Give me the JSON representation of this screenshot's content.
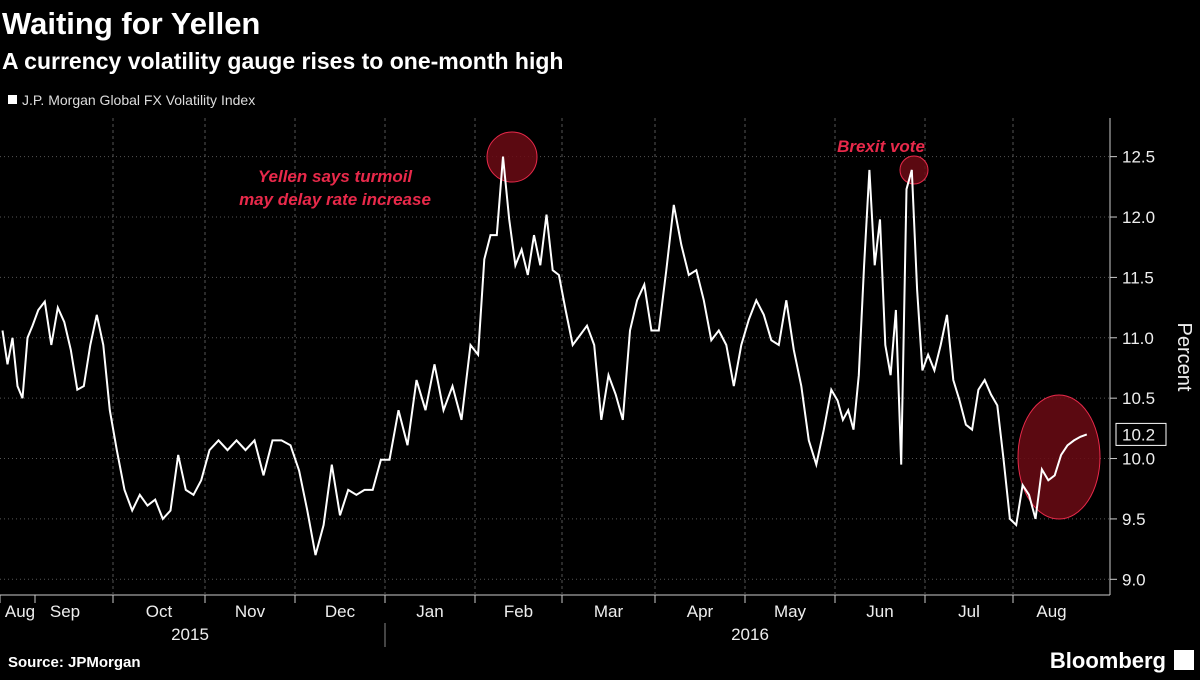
{
  "chart_data": {
    "type": "line",
    "title": "Waiting for Yellen",
    "subtitle": "A currency volatility gauge rises to one-month high",
    "y_label": "Percent",
    "source": "Source: JPMorgan",
    "brand": "Bloomberg",
    "annotations": [
      {
        "lines": [
          "Yellen says turmoil",
          "may delay rate increase"
        ]
      },
      {
        "lines": [
          "Brexit vote"
        ]
      }
    ],
    "ylim": [
      8.87,
      12.82
    ],
    "yticks": [
      {
        "value": 9,
        "label": "9.0"
      },
      9.5,
      {
        "value": 10,
        "label": "10.0"
      },
      10.5,
      {
        "value": 11,
        "label": "11.0"
      },
      11.5,
      {
        "value": 12,
        "label": "12.0"
      },
      12.5
    ],
    "grid": true,
    "xticks": [
      {
        "value": "2015-08",
        "label": "Aug"
      },
      {
        "value": "2015-09",
        "label": "Sep"
      },
      {
        "value": "2015-10",
        "label": "Oct"
      },
      {
        "value": "2015-11",
        "label": "Nov"
      },
      {
        "value": "2015-12",
        "label": "Dec"
      },
      {
        "value": "2016-01",
        "label": "Jan"
      },
      {
        "value": "2016-02",
        "label": "Feb"
      },
      {
        "value": "2016-03",
        "label": "Mar"
      },
      {
        "value": "2016-04",
        "label": "Apr"
      },
      {
        "value": "2016-05",
        "label": "May"
      },
      {
        "value": "2016-06",
        "label": "Jun"
      },
      {
        "value": "2016-07",
        "label": "Jul"
      },
      {
        "value": "2016-08",
        "label": "Aug"
      }
    ],
    "years": [
      "2015",
      "2016"
    ],
    "series": [
      {
        "name": "J.P. Morgan Global FX Volatility Index",
        "color": "#ffffff",
        "x": [
          "2015-08",
          "2015-08",
          "2015-08",
          "2015-08",
          "2015-08",
          "2015-08",
          "2015-08",
          "2015-09",
          "2015-09",
          "2015-09",
          "2015-09",
          "2015-09",
          "2015-09",
          "2015-09",
          "2015-09",
          "2015-09",
          "2015-09",
          "2015-09",
          "2015-09",
          "2015-10",
          "2015-10",
          "2015-10",
          "2015-10",
          "2015-10",
          "2015-10",
          "2015-10",
          "2015-10",
          "2015-10",
          "2015-10",
          "2015-10",
          "2015-10",
          "2015-11",
          "2015-11",
          "2015-11",
          "2015-11",
          "2015-11",
          "2015-11",
          "2015-11",
          "2015-11",
          "2015-11",
          "2015-11",
          "2015-12",
          "2015-12",
          "2015-12",
          "2015-12",
          "2015-12",
          "2015-12",
          "2015-12",
          "2015-12",
          "2015-12",
          "2015-12",
          "2015-12",
          "2016-01",
          "2016-01",
          "2016-01",
          "2016-01",
          "2016-01",
          "2016-01",
          "2016-01",
          "2016-01",
          "2016-01",
          "2016-01",
          "2016-02",
          "2016-02",
          "2016-02",
          "2016-02",
          "2016-02",
          "2016-02",
          "2016-02",
          "2016-02",
          "2016-02",
          "2016-02",
          "2016-02",
          "2016-02",
          "2016-02",
          "2016-02",
          "2016-03",
          "2016-03",
          "2016-03",
          "2016-03",
          "2016-03",
          "2016-03",
          "2016-03",
          "2016-03",
          "2016-03",
          "2016-03",
          "2016-03",
          "2016-03",
          "2016-03",
          "2016-04",
          "2016-04",
          "2016-04",
          "2016-04",
          "2016-04",
          "2016-04",
          "2016-04",
          "2016-04",
          "2016-04",
          "2016-04",
          "2016-04",
          "2016-04",
          "2016-05",
          "2016-05",
          "2016-05",
          "2016-05",
          "2016-05",
          "2016-05",
          "2016-05",
          "2016-05",
          "2016-05",
          "2016-05",
          "2016-05",
          "2016-05",
          "2016-06",
          "2016-06",
          "2016-06",
          "2016-06",
          "2016-06",
          "2016-06",
          "2016-06",
          "2016-06",
          "2016-06",
          "2016-06",
          "2016-06",
          "2016-06",
          "2016-06",
          "2016-06",
          "2016-06",
          "2016-06",
          "2016-06",
          "2016-07",
          "2016-07",
          "2016-07",
          "2016-07",
          "2016-07",
          "2016-07",
          "2016-07",
          "2016-07",
          "2016-07",
          "2016-07",
          "2016-07",
          "2016-07",
          "2016-07",
          "2016-07",
          "2016-08",
          "2016-08",
          "2016-08",
          "2016-08",
          "2016-08",
          "2016-08",
          "2016-08",
          "2016-08",
          "2016-08",
          "2016-08",
          "2016-08",
          "2016-08"
        ],
        "values": [
          11.06,
          10.78,
          11.0,
          10.6,
          10.5,
          11.0,
          11.1,
          11.23,
          11.3,
          10.94,
          11.25,
          11.13,
          10.9,
          10.57,
          10.6,
          10.94,
          11.19,
          10.94,
          10.4,
          10.07,
          9.74,
          9.57,
          9.7,
          9.61,
          9.66,
          9.5,
          9.57,
          10.03,
          9.74,
          9.7,
          9.82,
          10.07,
          10.15,
          10.07,
          10.15,
          10.07,
          10.15,
          9.86,
          10.15,
          10.15,
          10.11,
          9.9,
          9.57,
          9.2,
          9.45,
          9.95,
          9.53,
          9.74,
          9.7,
          9.74,
          9.74,
          9.99,
          9.99,
          10.4,
          10.11,
          10.65,
          10.4,
          10.78,
          10.4,
          10.6,
          10.32,
          10.94,
          10.86,
          11.65,
          11.85,
          11.85,
          12.5,
          11.98,
          11.6,
          11.73,
          11.52,
          11.85,
          11.6,
          12.02,
          11.56,
          11.52,
          11.23,
          10.94,
          11.02,
          11.1,
          10.94,
          10.32,
          10.69,
          10.53,
          10.32,
          11.06,
          11.31,
          11.44,
          11.06,
          11.06,
          11.56,
          12.1,
          11.77,
          11.52,
          11.56,
          11.31,
          10.98,
          11.06,
          10.94,
          10.6,
          10.94,
          11.15,
          11.31,
          11.19,
          10.98,
          10.94,
          11.31,
          10.9,
          10.6,
          10.15,
          9.95,
          10.24,
          10.57,
          10.48,
          10.32,
          10.4,
          10.24,
          10.69,
          11.6,
          12.39,
          11.6,
          11.98,
          10.94,
          10.69,
          11.23,
          9.95,
          12.23,
          12.39,
          11.4,
          10.73,
          10.86,
          10.73,
          10.94,
          11.19,
          10.65,
          10.48,
          10.28,
          10.24,
          10.57,
          10.65,
          10.53,
          10.44,
          9.99,
          9.5,
          9.45,
          9.78,
          9.7,
          9.5,
          9.91,
          9.82,
          9.86,
          10.03,
          10.11,
          10.15,
          10.18,
          10.2
        ]
      }
    ]
  }
}
